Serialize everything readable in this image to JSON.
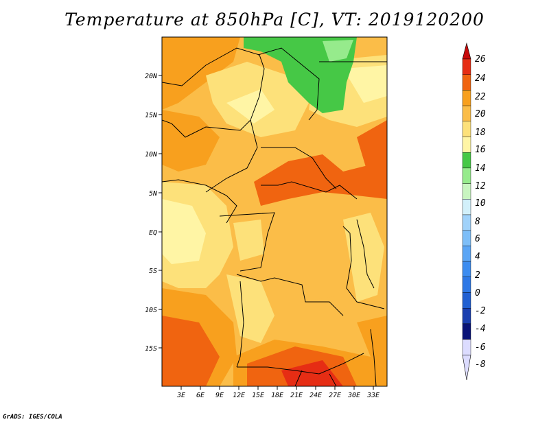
{
  "title": "Temperature at 850hPa [C], VT: 2019120200",
  "credit": "GrADS: IGES/COLA",
  "map": {
    "lat_labels": [
      "20N",
      "15N",
      "10N",
      "5N",
      "EQ",
      "5S",
      "10S",
      "15S"
    ],
    "lon_labels": [
      "3E",
      "6E",
      "9E",
      "12E",
      "15E",
      "18E",
      "21E",
      "24E",
      "27E",
      "30E",
      "33E"
    ]
  },
  "colorbar": {
    "labels": [
      "26",
      "24",
      "22",
      "20",
      "18",
      "16",
      "14",
      "12",
      "10",
      "8",
      "6",
      "4",
      "2",
      "0",
      "-2",
      "-4",
      "-6",
      "-8"
    ],
    "colors": {
      "c_neg10": "#dcdcff",
      "c_neg8": "#0a1478",
      "c_neg6": "#1a3fb0",
      "c_neg4": "#2160d2",
      "c_neg2": "#2d78e6",
      "c_0": "#3c8cf0",
      "c_2": "#5aa5f5",
      "c_4": "#7dbef8",
      "c_6": "#a0d2fa",
      "c_8": "#d2f0fa",
      "c_10": "#c8f5c0",
      "c_12": "#96eb8c",
      "c_14": "#46c846",
      "c_16": "#fff5a5",
      "c_18": "#fde17a",
      "c_20": "#fbbd48",
      "c_22": "#f8a01e",
      "c_24": "#f06410",
      "c_26": "#e62d14",
      "c_28": "#c80a0a"
    }
  }
}
